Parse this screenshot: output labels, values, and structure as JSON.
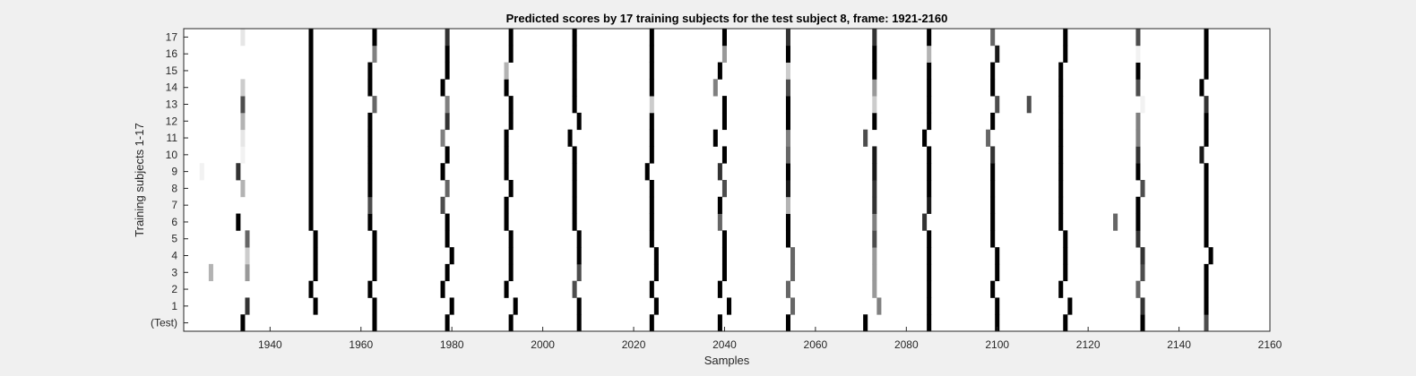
{
  "chart_data": {
    "type": "heatmap",
    "title": "Predicted scores by 17 training subjects for the test subject 8, frame: 1921-2160",
    "xlabel": "Samples",
    "ylabel": "Training subjects 1-17",
    "xlim": [
      1921,
      2160
    ],
    "xticks": [
      1940,
      1960,
      1980,
      2000,
      2020,
      2040,
      2060,
      2080,
      2100,
      2120,
      2140,
      2160
    ],
    "rows": [
      "(Test)",
      "1",
      "2",
      "3",
      "4",
      "5",
      "6",
      "7",
      "8",
      "9",
      "10",
      "11",
      "12",
      "13",
      "14",
      "15",
      "16",
      "17"
    ],
    "colormap": "gray-inverted",
    "value_range": [
      0,
      1
    ],
    "cells": [
      {
        "row": "(Test)",
        "marks": [
          [
            1934,
            1
          ],
          [
            1963,
            1
          ],
          [
            1979,
            1
          ],
          [
            1993,
            1
          ],
          [
            2008,
            1
          ],
          [
            2024,
            1
          ],
          [
            2039,
            1
          ],
          [
            2054,
            1
          ],
          [
            2071,
            1
          ],
          [
            2085,
            1
          ],
          [
            2100,
            1
          ],
          [
            2115,
            1
          ],
          [
            2132,
            1
          ],
          [
            2146,
            0.7
          ]
        ]
      },
      {
        "row": "1",
        "marks": [
          [
            1935,
            0.8
          ],
          [
            1950,
            1
          ],
          [
            1963,
            1
          ],
          [
            1980,
            1
          ],
          [
            1994,
            1
          ],
          [
            2008,
            1
          ],
          [
            2025,
            1
          ],
          [
            2041,
            1
          ],
          [
            2055,
            0.6
          ],
          [
            2074,
            0.5
          ],
          [
            2085,
            1
          ],
          [
            2100,
            1
          ],
          [
            2116,
            1
          ],
          [
            2132,
            0.8
          ],
          [
            2146,
            1
          ]
        ]
      },
      {
        "row": "2",
        "marks": [
          [
            1949,
            1
          ],
          [
            1962,
            1
          ],
          [
            1978,
            1
          ],
          [
            1992,
            1
          ],
          [
            2007,
            0.7
          ],
          [
            2024,
            1
          ],
          [
            2039,
            1
          ],
          [
            2054,
            0.6
          ],
          [
            2073,
            0.4
          ],
          [
            2085,
            1
          ],
          [
            2099,
            1
          ],
          [
            2114,
            1
          ],
          [
            2131,
            0.6
          ],
          [
            2146,
            1
          ]
        ]
      },
      {
        "row": "3",
        "marks": [
          [
            1927,
            0.3
          ],
          [
            1935,
            0.4
          ],
          [
            1950,
            1
          ],
          [
            1963,
            1
          ],
          [
            1979,
            1
          ],
          [
            1993,
            1
          ],
          [
            2008,
            0.7
          ],
          [
            2025,
            1
          ],
          [
            2040,
            1
          ],
          [
            2055,
            0.6
          ],
          [
            2073,
            0.4
          ],
          [
            2085,
            1
          ],
          [
            2100,
            1
          ],
          [
            2115,
            1
          ],
          [
            2132,
            0.7
          ],
          [
            2146,
            1
          ]
        ]
      },
      {
        "row": "4",
        "marks": [
          [
            1935,
            0.2
          ],
          [
            1950,
            1
          ],
          [
            1963,
            1
          ],
          [
            1980,
            1
          ],
          [
            1993,
            1
          ],
          [
            2008,
            1
          ],
          [
            2025,
            1
          ],
          [
            2040,
            1
          ],
          [
            2055,
            0.6
          ],
          [
            2073,
            0.4
          ],
          [
            2085,
            1
          ],
          [
            2100,
            1
          ],
          [
            2115,
            1
          ],
          [
            2132,
            0.8
          ],
          [
            2147,
            1
          ]
        ]
      },
      {
        "row": "5",
        "marks": [
          [
            1935,
            0.6
          ],
          [
            1950,
            1
          ],
          [
            1963,
            1
          ],
          [
            1979,
            1
          ],
          [
            1993,
            1
          ],
          [
            2008,
            1
          ],
          [
            2024,
            1
          ],
          [
            2040,
            1
          ],
          [
            2054,
            1
          ],
          [
            2073,
            0.7
          ],
          [
            2085,
            1
          ],
          [
            2099,
            1
          ],
          [
            2115,
            1
          ],
          [
            2131,
            0.8
          ],
          [
            2146,
            1
          ]
        ]
      },
      {
        "row": "6",
        "marks": [
          [
            1933,
            1
          ],
          [
            1949,
            1
          ],
          [
            1962,
            1
          ],
          [
            1979,
            1
          ],
          [
            1992,
            1
          ],
          [
            2007,
            1
          ],
          [
            2024,
            1
          ],
          [
            2039,
            0.6
          ],
          [
            2054,
            1
          ],
          [
            2073,
            0.5
          ],
          [
            2084,
            0.8
          ],
          [
            2099,
            1
          ],
          [
            2114,
            1
          ],
          [
            2126,
            0.6
          ],
          [
            2131,
            1
          ],
          [
            2146,
            1
          ]
        ]
      },
      {
        "row": "7",
        "marks": [
          [
            1949,
            1
          ],
          [
            1962,
            0.7
          ],
          [
            1978,
            0.7
          ],
          [
            1992,
            1
          ],
          [
            2007,
            1
          ],
          [
            2024,
            1
          ],
          [
            2039,
            1
          ],
          [
            2054,
            0.3
          ],
          [
            2073,
            0.8
          ],
          [
            2085,
            0.9
          ],
          [
            2099,
            1
          ],
          [
            2114,
            1
          ],
          [
            2131,
            1
          ],
          [
            2146,
            1
          ]
        ]
      },
      {
        "row": "8",
        "marks": [
          [
            1934,
            0.3
          ],
          [
            1949,
            1
          ],
          [
            1962,
            1
          ],
          [
            1979,
            0.6
          ],
          [
            1993,
            1
          ],
          [
            2007,
            1
          ],
          [
            2024,
            1
          ],
          [
            2040,
            0.7
          ],
          [
            2054,
            0.9
          ],
          [
            2073,
            0.8
          ],
          [
            2085,
            1
          ],
          [
            2099,
            1
          ],
          [
            2114,
            1
          ],
          [
            2132,
            0.7
          ],
          [
            2146,
            1
          ]
        ]
      },
      {
        "row": "9",
        "marks": [
          [
            1925,
            0.05
          ],
          [
            1933,
            0.8
          ],
          [
            1949,
            1
          ],
          [
            1962,
            1
          ],
          [
            1978,
            1
          ],
          [
            1992,
            1
          ],
          [
            2007,
            1
          ],
          [
            2023,
            1
          ],
          [
            2039,
            0.8
          ],
          [
            2054,
            1
          ],
          [
            2073,
            0.9
          ],
          [
            2085,
            1
          ],
          [
            2099,
            1
          ],
          [
            2114,
            1
          ],
          [
            2131,
            1
          ],
          [
            2146,
            1
          ]
        ]
      },
      {
        "row": "10",
        "marks": [
          [
            1934,
            0.05
          ],
          [
            1949,
            1
          ],
          [
            1962,
            1
          ],
          [
            1979,
            1
          ],
          [
            1992,
            1
          ],
          [
            2007,
            1
          ],
          [
            2024,
            1
          ],
          [
            2040,
            1
          ],
          [
            2054,
            0.6
          ],
          [
            2073,
            0.9
          ],
          [
            2085,
            1
          ],
          [
            2099,
            0.8
          ],
          [
            2114,
            1
          ],
          [
            2131,
            0.8
          ],
          [
            2145,
            0.9
          ]
        ]
      },
      {
        "row": "11",
        "marks": [
          [
            1934,
            0.1
          ],
          [
            1949,
            1
          ],
          [
            1962,
            1
          ],
          [
            1978,
            0.5
          ],
          [
            1992,
            1
          ],
          [
            2006,
            1
          ],
          [
            2024,
            1
          ],
          [
            2038,
            1
          ],
          [
            2054,
            0.5
          ],
          [
            2071,
            0.7
          ],
          [
            2084,
            1
          ],
          [
            2098,
            0.6
          ],
          [
            2114,
            1
          ],
          [
            2131,
            0.5
          ],
          [
            2146,
            1
          ]
        ]
      },
      {
        "row": "12",
        "marks": [
          [
            1934,
            0.3
          ],
          [
            1949,
            1
          ],
          [
            1962,
            1
          ],
          [
            1979,
            0.8
          ],
          [
            1993,
            1
          ],
          [
            2008,
            1
          ],
          [
            2024,
            1
          ],
          [
            2040,
            1
          ],
          [
            2054,
            1
          ],
          [
            2073,
            1
          ],
          [
            2085,
            1
          ],
          [
            2099,
            1
          ],
          [
            2114,
            1
          ],
          [
            2131,
            0.5
          ],
          [
            2146,
            1
          ]
        ]
      },
      {
        "row": "13",
        "marks": [
          [
            1934,
            0.7
          ],
          [
            1949,
            1
          ],
          [
            1963,
            0.6
          ],
          [
            1979,
            0.5
          ],
          [
            1993,
            1
          ],
          [
            2007,
            1
          ],
          [
            2024,
            0.2
          ],
          [
            2040,
            1
          ],
          [
            2054,
            1
          ],
          [
            2073,
            0.2
          ],
          [
            2085,
            1
          ],
          [
            2100,
            0.7
          ],
          [
            2107,
            0.7
          ],
          [
            2114,
            1
          ],
          [
            2132,
            0.05
          ],
          [
            2146,
            0.8
          ]
        ]
      },
      {
        "row": "14",
        "marks": [
          [
            1934,
            0.2
          ],
          [
            1949,
            1
          ],
          [
            1962,
            1
          ],
          [
            1978,
            1
          ],
          [
            1992,
            1
          ],
          [
            2007,
            1
          ],
          [
            2024,
            1
          ],
          [
            2038,
            0.5
          ],
          [
            2054,
            0.7
          ],
          [
            2073,
            0.4
          ],
          [
            2085,
            1
          ],
          [
            2099,
            1
          ],
          [
            2114,
            1
          ],
          [
            2131,
            0.7
          ],
          [
            2145,
            1
          ]
        ]
      },
      {
        "row": "15",
        "marks": [
          [
            1949,
            1
          ],
          [
            1962,
            1
          ],
          [
            1979,
            1
          ],
          [
            1992,
            0.3
          ],
          [
            2007,
            1
          ],
          [
            2024,
            1
          ],
          [
            2039,
            1
          ],
          [
            2054,
            0.2
          ],
          [
            2073,
            1
          ],
          [
            2085,
            1
          ],
          [
            2099,
            1
          ],
          [
            2114,
            1
          ],
          [
            2131,
            1
          ],
          [
            2146,
            1
          ]
        ]
      },
      {
        "row": "16",
        "marks": [
          [
            1949,
            1
          ],
          [
            1963,
            0.5
          ],
          [
            1979,
            1
          ],
          [
            1993,
            1
          ],
          [
            2007,
            1
          ],
          [
            2024,
            1
          ],
          [
            2040,
            0.4
          ],
          [
            2054,
            1
          ],
          [
            2073,
            1
          ],
          [
            2085,
            0.3
          ],
          [
            2100,
            0.9
          ],
          [
            2115,
            1
          ],
          [
            2131,
            0.05
          ],
          [
            2146,
            1
          ]
        ]
      },
      {
        "row": "17",
        "marks": [
          [
            1934,
            0.1
          ],
          [
            1949,
            1
          ],
          [
            1963,
            1
          ],
          [
            1979,
            0.8
          ],
          [
            1993,
            1
          ],
          [
            2007,
            1
          ],
          [
            2024,
            1
          ],
          [
            2040,
            1
          ],
          [
            2054,
            0.8
          ],
          [
            2073,
            0.8
          ],
          [
            2085,
            1
          ],
          [
            2099,
            0.6
          ],
          [
            2115,
            1
          ],
          [
            2131,
            0.7
          ],
          [
            2146,
            1
          ]
        ]
      }
    ]
  }
}
